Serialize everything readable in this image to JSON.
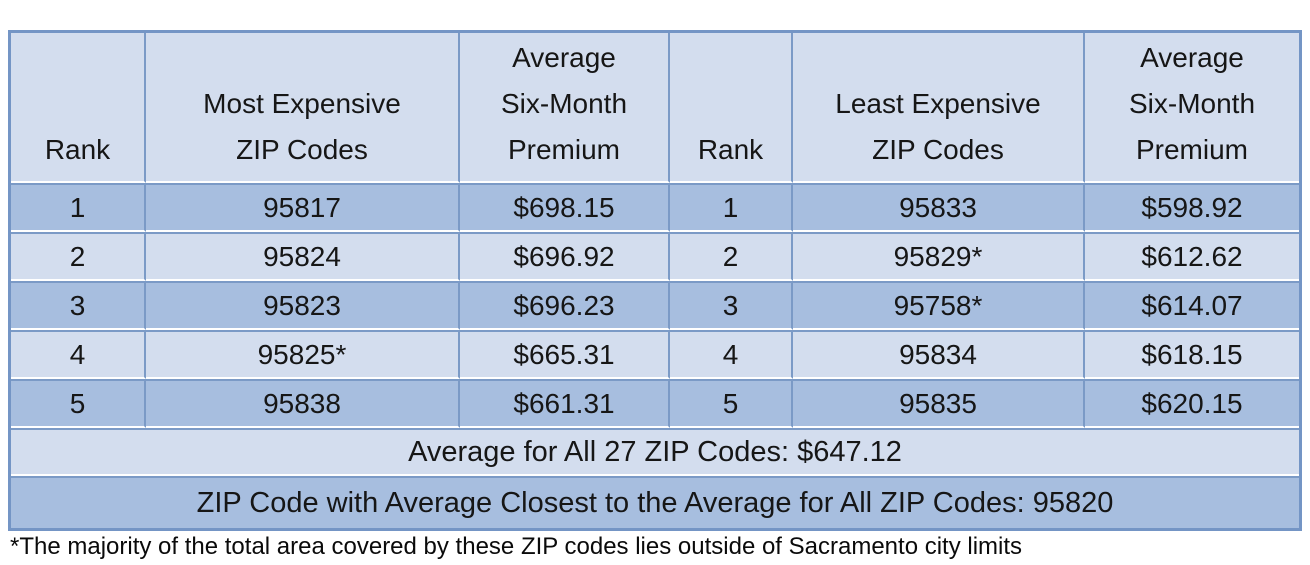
{
  "colors": {
    "row_dark": "#A7BEDF",
    "row_light": "#D3DDEE",
    "grid_blue": "#7B9AC6",
    "outer_border": "#7495C5",
    "separator_white": "#FFFFFF",
    "text": "#161616",
    "page_background": "#FFFFFF"
  },
  "table": {
    "headers": [
      "Rank",
      "Most Expensive\nZIP Codes",
      "Average\nSix-Month\nPremium",
      "Rank",
      "Least Expensive\nZIP Codes",
      "Average\nSix-Month\nPremium"
    ],
    "rows": [
      [
        "1",
        "95817",
        "$698.15",
        "1",
        "95833",
        "$598.92"
      ],
      [
        "2",
        "95824",
        "$696.92",
        "2",
        "95829*",
        "$612.62"
      ],
      [
        "3",
        "95823",
        "$696.23",
        "3",
        "95758*",
        "$614.07"
      ],
      [
        "4",
        "95825*",
        "$665.31",
        "4",
        "95834",
        "$618.15"
      ],
      [
        "5",
        "95838",
        "$661.31",
        "5",
        "95835",
        "$620.15"
      ]
    ],
    "summary_rows": [
      "Average for All 27 ZIP Codes: $647.12",
      "ZIP Code with Average Closest to the Average for All ZIP Codes: 95820"
    ]
  },
  "footnote": "*The majority of the total area covered by these ZIP codes lies outside of Sacramento city limits",
  "chart_data": {
    "type": "table",
    "columns": [
      "Rank",
      "Most Expensive ZIP Codes",
      "Average Six-Month Premium",
      "Rank",
      "Least Expensive ZIP Codes",
      "Average Six-Month Premium"
    ],
    "most_expensive": [
      {
        "rank": 1,
        "zip": "95817",
        "premium": 698.15
      },
      {
        "rank": 2,
        "zip": "95824",
        "premium": 696.92
      },
      {
        "rank": 3,
        "zip": "95823",
        "premium": 696.23
      },
      {
        "rank": 4,
        "zip": "95825*",
        "premium": 665.31
      },
      {
        "rank": 5,
        "zip": "95838",
        "premium": 661.31
      }
    ],
    "least_expensive": [
      {
        "rank": 1,
        "zip": "95833",
        "premium": 598.92
      },
      {
        "rank": 2,
        "zip": "95829*",
        "premium": 612.62
      },
      {
        "rank": 3,
        "zip": "95758*",
        "premium": 614.07
      },
      {
        "rank": 4,
        "zip": "95834",
        "premium": 618.15
      },
      {
        "rank": 5,
        "zip": "95835",
        "premium": 620.15
      }
    ],
    "average_all_27_zip_codes": 647.12,
    "zip_code_closest_to_average": "95820",
    "footnote": "*The majority of the total area covered by these ZIP codes lies outside of Sacramento city limits"
  }
}
